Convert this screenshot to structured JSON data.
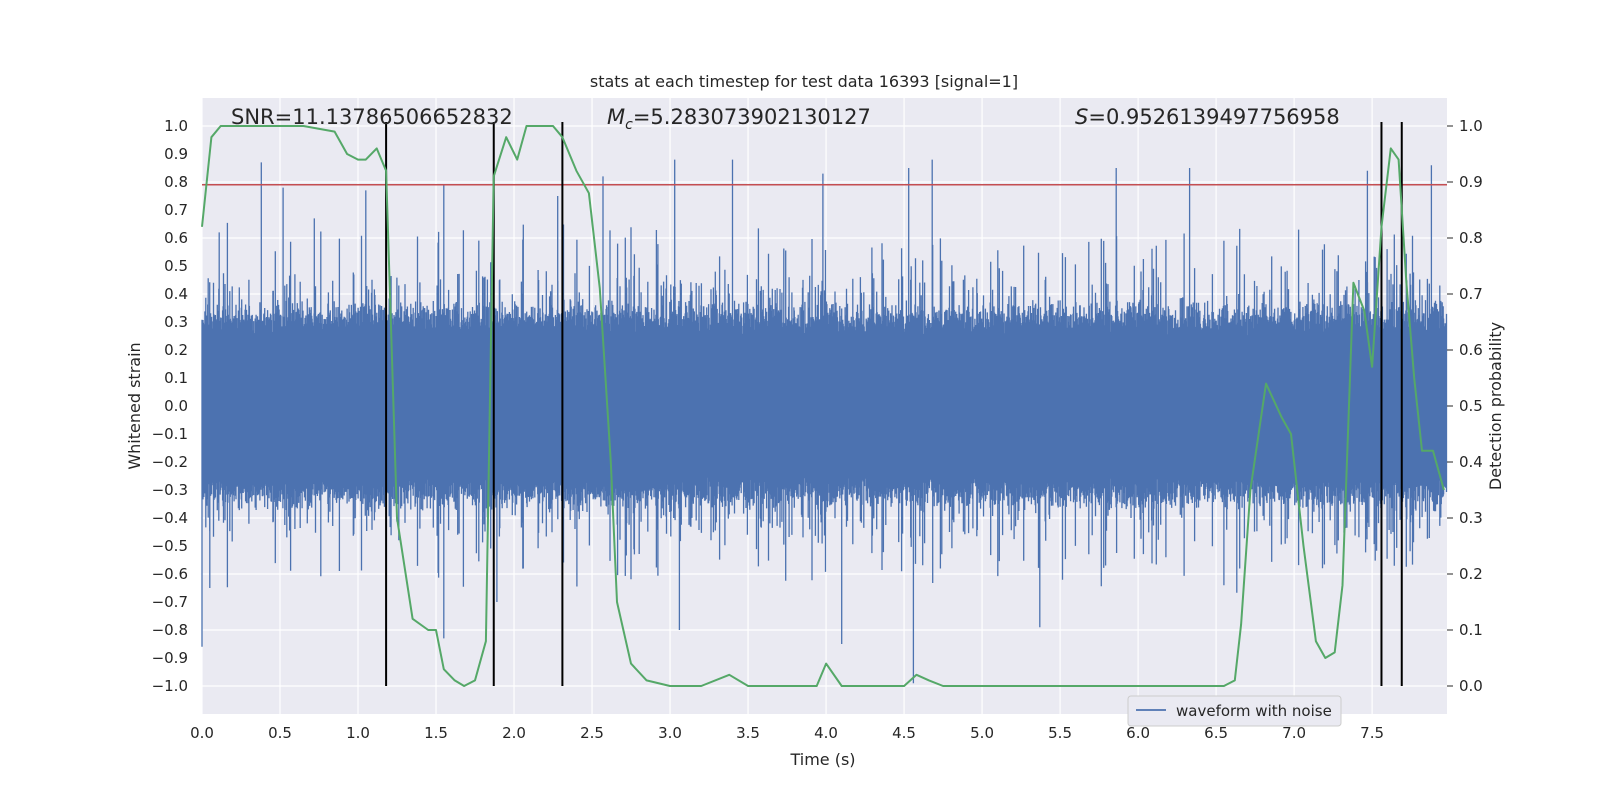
{
  "chart_data": {
    "type": "line",
    "title": "stats at each timestep for test data 16393 [signal=1]",
    "xlabel": "Time (s)",
    "ylabel": "Whitened strain",
    "ylabel_right": "Detection probability",
    "xlim": [
      0.0,
      7.98
    ],
    "ylim": [
      -1.1,
      1.1
    ],
    "ylim_right": [
      -0.05,
      1.05
    ],
    "grid": true,
    "x_ticks": [
      "0.0",
      "0.5",
      "1.0",
      "1.5",
      "2.0",
      "2.5",
      "3.0",
      "3.5",
      "4.0",
      "4.5",
      "5.0",
      "5.5",
      "6.0",
      "6.5",
      "7.0",
      "7.5"
    ],
    "y_ticks": [
      "1.0",
      "0.9",
      "0.8",
      "0.7",
      "0.6",
      "0.5",
      "0.4",
      "0.3",
      "0.2",
      "0.1",
      "0.0",
      "−0.1",
      "−0.2",
      "−0.3",
      "−0.4",
      "−0.5",
      "−0.6",
      "−0.7",
      "−0.8",
      "−0.9",
      "−1.0"
    ],
    "y_ticks_right": [
      "1.0",
      "0.9",
      "0.8",
      "0.7",
      "0.6",
      "0.5",
      "0.4",
      "0.3",
      "0.2",
      "0.1",
      "0.0"
    ],
    "annotations": {
      "snr": "SNR=11.13786506652832",
      "mc_symbol": "M",
      "mc_sub": "c",
      "mc_value": "=5.283073902130127",
      "s_symbol": "S",
      "s_value": "=0.9526139497756958"
    },
    "legend": {
      "label": "waveform with noise",
      "position": "lower-right"
    },
    "threshold": {
      "value": 0.79,
      "color": "#c44e52"
    },
    "vertical_markers": [
      1.18,
      1.87,
      2.31,
      7.56,
      7.69
    ],
    "series": [
      {
        "name": "waveform with noise",
        "color": "#4c72b0",
        "kind": "noise",
        "band": 0.38,
        "peaks": [
          [
            0.0,
            -0.86
          ],
          [
            0.05,
            -0.65
          ],
          [
            0.11,
            0.62
          ],
          [
            0.38,
            0.87
          ],
          [
            0.52,
            0.78
          ],
          [
            0.72,
            0.67
          ],
          [
            1.05,
            0.77
          ],
          [
            1.18,
            -0.66
          ],
          [
            1.55,
            0.79
          ],
          [
            1.55,
            -0.83
          ],
          [
            1.89,
            -0.7
          ],
          [
            2.28,
            0.75
          ],
          [
            2.31,
            -0.67
          ],
          [
            2.57,
            0.82
          ],
          [
            3.03,
            0.88
          ],
          [
            3.4,
            0.87
          ],
          [
            3.4,
            0.88
          ],
          [
            3.98,
            0.83
          ],
          [
            4.1,
            -0.85
          ],
          [
            4.53,
            0.85
          ],
          [
            4.56,
            -0.99
          ],
          [
            4.68,
            0.88
          ],
          [
            5.86,
            0.85
          ],
          [
            6.33,
            0.85
          ],
          [
            7.47,
            0.84
          ],
          [
            7.88,
            0.86
          ],
          [
            5.37,
            -0.79
          ],
          [
            3.06,
            -0.8
          ]
        ]
      },
      {
        "name": "detection probability",
        "color": "#55a868",
        "axis": "right",
        "x": [
          0.0,
          0.06,
          0.12,
          0.25,
          0.45,
          0.65,
          0.85,
          0.93,
          1.0,
          1.05,
          1.12,
          1.18,
          1.25,
          1.35,
          1.45,
          1.5,
          1.55,
          1.62,
          1.68,
          1.75,
          1.82,
          1.87,
          1.95,
          2.02,
          2.08,
          2.14,
          2.25,
          2.31,
          2.4,
          2.48,
          2.55,
          2.62,
          2.66,
          2.75,
          2.85,
          3.0,
          3.2,
          3.38,
          3.5,
          3.68,
          3.85,
          3.94,
          4.0,
          4.1,
          4.2,
          4.35,
          4.5,
          4.58,
          4.66,
          4.75,
          4.9,
          5.2,
          5.5,
          5.7,
          5.9,
          6.1,
          6.3,
          6.55,
          6.62,
          6.66,
          6.72,
          6.82,
          6.92,
          6.98,
          7.06,
          7.14,
          7.2,
          7.26,
          7.31,
          7.38,
          7.45,
          7.5,
          7.56,
          7.62,
          7.67,
          7.72,
          7.77,
          7.82,
          7.89,
          7.96
        ],
        "y": [
          0.82,
          0.98,
          1.0,
          1.0,
          1.0,
          1.0,
          0.99,
          0.95,
          0.94,
          0.94,
          0.96,
          0.92,
          0.3,
          0.12,
          0.1,
          0.1,
          0.03,
          0.01,
          0.0,
          0.01,
          0.08,
          0.91,
          0.98,
          0.94,
          1.0,
          1.0,
          1.0,
          0.98,
          0.92,
          0.88,
          0.71,
          0.4,
          0.15,
          0.04,
          0.01,
          0.0,
          0.0,
          0.02,
          0.0,
          0.0,
          0.0,
          0.0,
          0.04,
          0.0,
          0.0,
          0.0,
          0.0,
          0.02,
          0.01,
          0.0,
          0.0,
          0.0,
          0.0,
          0.0,
          0.0,
          0.0,
          0.0,
          0.0,
          0.01,
          0.11,
          0.35,
          0.54,
          0.48,
          0.45,
          0.25,
          0.08,
          0.05,
          0.06,
          0.18,
          0.72,
          0.67,
          0.57,
          0.82,
          0.96,
          0.94,
          0.72,
          0.55,
          0.42,
          0.42,
          0.35
        ]
      }
    ]
  }
}
